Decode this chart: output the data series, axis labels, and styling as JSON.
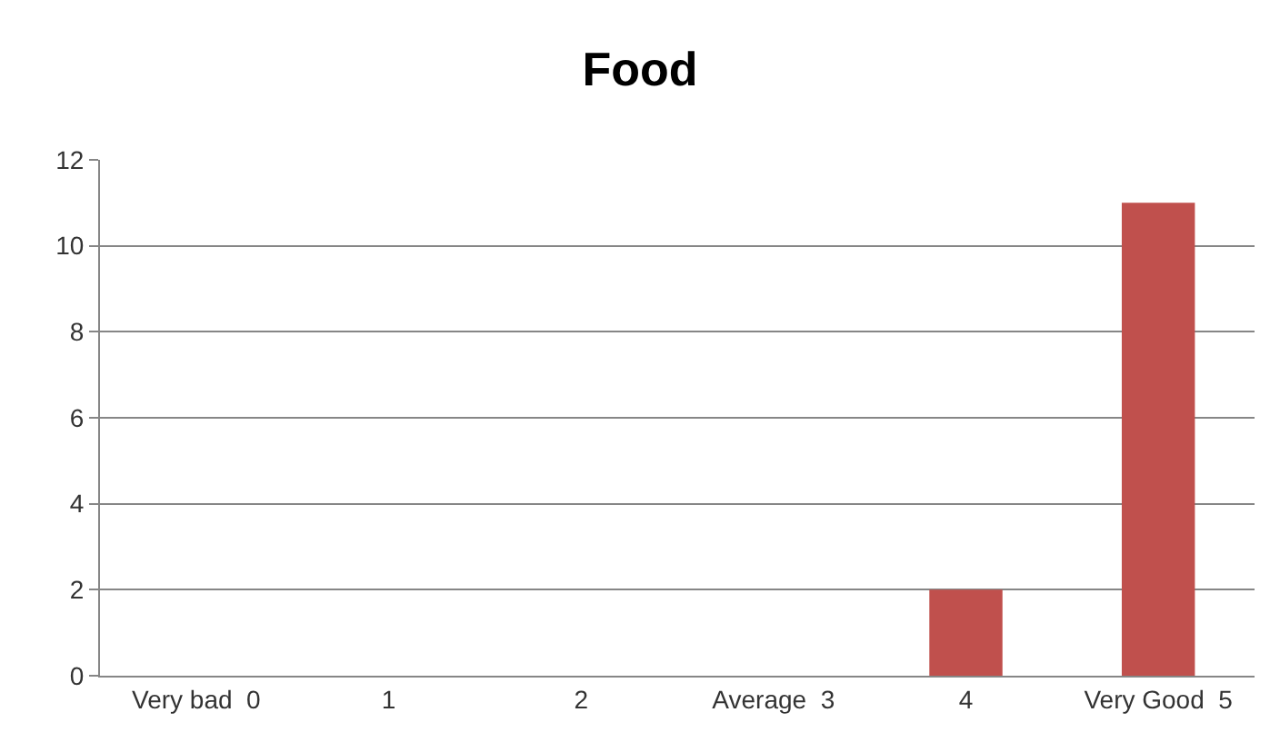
{
  "chart_data": {
    "type": "bar",
    "title": "Food",
    "categories": [
      "Very bad  0",
      "1",
      "2",
      "Average  3",
      "4",
      "Very Good  5"
    ],
    "values": [
      0,
      0,
      0,
      0,
      2,
      11
    ],
    "color": "#c0504d",
    "ylim": [
      0,
      12
    ],
    "yticks": [
      0,
      2,
      4,
      6,
      8,
      10,
      12
    ],
    "grid": "y"
  }
}
